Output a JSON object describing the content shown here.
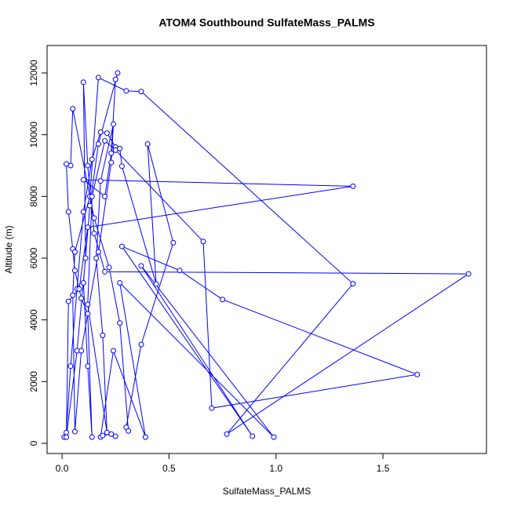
{
  "chart_data": {
    "type": "scatter_line",
    "title": "ATOM4 Southbound SulfateMass_PALMS",
    "x_label": "SulfateMass_PALMS",
    "y_label": "Altitude (m)",
    "color": "#0000ff",
    "xlim": [
      -0.07,
      1.984
    ],
    "ylim": [
      -330,
      12890
    ],
    "xticks": [
      {
        "value": 0,
        "label": "0.0"
      },
      {
        "value": 0.5,
        "label": "0.5"
      },
      {
        "value": 1,
        "label": "1.0"
      },
      {
        "value": 1.5,
        "label": "1.5"
      }
    ],
    "yticks": [
      0,
      2000,
      4000,
      6000,
      8000,
      10000,
      12000
    ],
    "x": [
      0.01,
      0.02,
      0.04,
      0.07,
      0.1,
      0.14,
      0.18,
      0.21,
      0.25,
      0.27,
      0.28,
      0.44,
      0.4,
      0.52,
      0.37,
      0.3,
      0.31,
      0.27,
      0.22,
      0.15,
      0.05,
      0.04,
      0.02,
      0.03,
      0.05,
      0.06,
      0.09,
      0.12,
      0.14,
      0.12,
      0.1,
      0.13,
      0.17,
      0.26,
      0.25,
      0.23,
      0.2,
      0.1,
      1.36,
      0.12,
      0.08,
      0.03,
      0.02,
      0.07,
      0.11,
      0.1,
      0.12,
      0.15,
      0.2,
      1.9,
      0.77,
      1.36,
      0.37,
      0.3,
      0.17,
      0.13,
      0.06,
      0.05,
      0.06,
      0.09,
      0.17,
      0.23,
      0.24,
      0.18,
      0.16,
      0.19,
      0.21,
      0.12,
      0.14,
      0.2,
      0.25,
      0.66,
      0.7,
      1.66,
      0.75,
      0.55,
      0.28,
      0.89,
      0.37,
      0.99,
      0.27,
      0.39,
      0.24,
      0.18,
      0.19,
      0.23,
      0.25
    ],
    "values": [
      200,
      350,
      2500,
      5000,
      7500,
      9200,
      10080,
      10050,
      9600,
      9550,
      8980,
      5160,
      9700,
      6500,
      3200,
      520,
      400,
      3900,
      5700,
      7300,
      10840,
      9000,
      9050,
      7500,
      6300,
      5600,
      4700,
      4200,
      200,
      2500,
      5200,
      7700,
      9700,
      12000,
      11790,
      9400,
      8000,
      8540,
      8330,
      7000,
      5000,
      4600,
      200,
      3000,
      6000,
      11700,
      9000,
      6800,
      5560,
      5490,
      300,
      5170,
      11400,
      11420,
      11850,
      8000,
      6200,
      4800,
      380,
      3000,
      6200,
      9100,
      10340,
      8500,
      6000,
      3500,
      350,
      4500,
      8000,
      9800,
      9500,
      6540,
      1140,
      2230,
      4660,
      5600,
      6380,
      230,
      5750,
      200,
      5200,
      200,
      3000,
      200,
      250,
      300,
      230
    ]
  }
}
